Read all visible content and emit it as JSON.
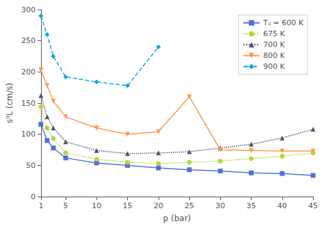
{
  "chart_data": {
    "type": "line",
    "xlabel": "p (bar)",
    "ylabel": "s⁰L (cm/s)",
    "xlim": [
      1,
      45
    ],
    "ylim": [
      0,
      300
    ],
    "xticks": [
      1,
      5,
      10,
      15,
      20,
      25,
      30,
      35,
      40,
      45
    ],
    "yticks": [
      0,
      50,
      100,
      150,
      200,
      250,
      300
    ],
    "grid": false,
    "legend": "upper right",
    "series": [
      {
        "name": "Tᵤ = 600 K",
        "x": [
          1,
          2,
          3,
          5,
          10,
          15,
          20,
          25,
          30,
          35,
          40,
          45
        ],
        "values": [
          116,
          90,
          78,
          62,
          54,
          50,
          46,
          43,
          41,
          38,
          37,
          34
        ],
        "marker": "square",
        "line_style": "solid"
      },
      {
        "name": "675 K",
        "x": [
          1,
          2,
          3,
          5,
          10,
          15,
          20,
          25,
          30,
          35,
          40,
          45
        ],
        "values": [
          144,
          110,
          93,
          70,
          60,
          55,
          53,
          55,
          57,
          61,
          65,
          70
        ],
        "marker": "circle",
        "line_style": "dotted"
      },
      {
        "name": "700 K",
        "x": [
          1,
          2,
          3,
          5,
          10,
          15,
          20,
          25,
          30,
          35,
          40,
          45
        ],
        "values": [
          162,
          128,
          110,
          88,
          74,
          69,
          70,
          72,
          78,
          84,
          94,
          108
        ],
        "marker": "triangle_up",
        "line_style": "dotted"
      },
      {
        "name": "800 K",
        "x": [
          1,
          2,
          3,
          5,
          10,
          15,
          20,
          25,
          30,
          35,
          40,
          45
        ],
        "values": [
          203,
          178,
          153,
          128,
          110,
          100,
          104,
          160,
          75,
          74,
          73,
          73
        ],
        "marker": "triangle_down",
        "line_style": "solid"
      },
      {
        "name": "900 K",
        "x": [
          1,
          2,
          3,
          5,
          10,
          15,
          20
        ],
        "values": [
          290,
          260,
          225,
          192,
          184,
          178,
          240
        ],
        "marker": "diamond",
        "line_style": "dashed"
      }
    ]
  }
}
